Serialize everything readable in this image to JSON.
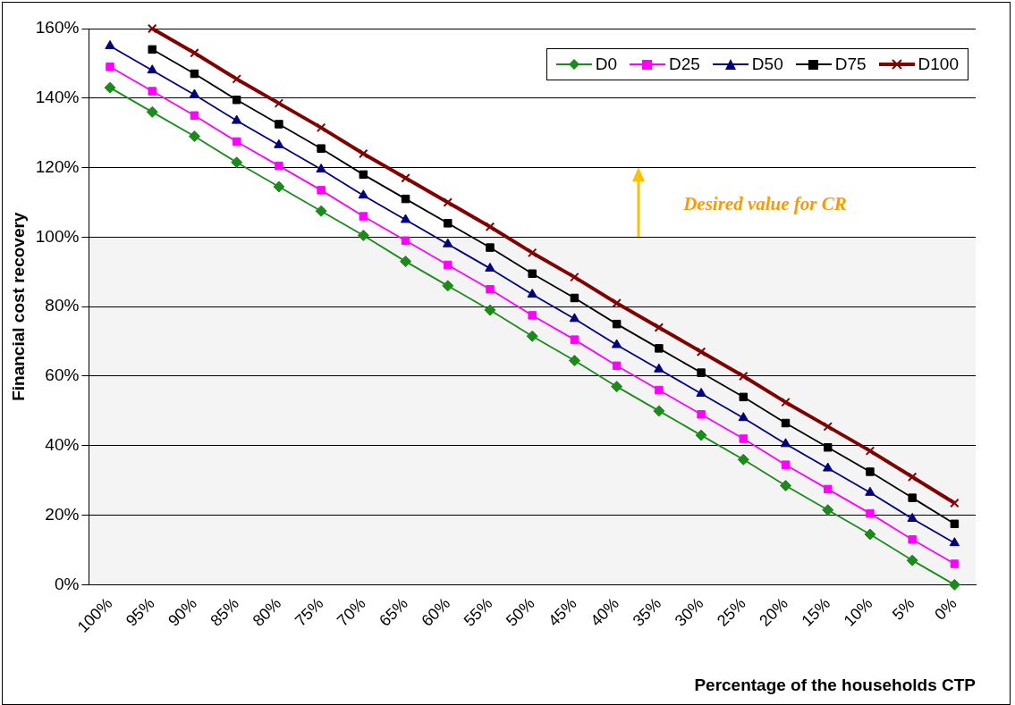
{
  "chart_data": {
    "type": "line",
    "xlabel": "Percentage of the households CTP",
    "ylabel": "Financial cost recovery",
    "categories": [
      "100%",
      "95%",
      "90%",
      "85%",
      "80%",
      "75%",
      "70%",
      "65%",
      "60%",
      "55%",
      "50%",
      "45%",
      "40%",
      "35%",
      "30%",
      "25%",
      "20%",
      "15%",
      "10%",
      "5%",
      "0%"
    ],
    "series": [
      {
        "name": "D0",
        "color": "#1a8c1a",
        "marker": "diamond",
        "values": [
          143,
          136,
          129,
          121.5,
          114.5,
          107.5,
          100.5,
          93,
          86,
          79,
          71.5,
          64.5,
          57,
          50,
          43,
          36,
          28.5,
          21.5,
          14.5,
          7,
          0
        ]
      },
      {
        "name": "D25",
        "color": "#ff00ff",
        "marker": "square",
        "values": [
          149,
          142,
          135,
          127.5,
          120.5,
          113.5,
          106,
          99,
          92,
          85,
          77.5,
          70.5,
          63,
          56,
          49,
          42,
          34.5,
          27.5,
          20.5,
          13,
          6
        ]
      },
      {
        "name": "D50",
        "color": "#000080",
        "marker": "triangle",
        "values": [
          155,
          148,
          141,
          133.5,
          126.5,
          119.5,
          112,
          105,
          98,
          91,
          83.5,
          76.5,
          69,
          62,
          55,
          48,
          40.5,
          33.5,
          26.5,
          19,
          12
        ]
      },
      {
        "name": "D75",
        "color": "#000000",
        "marker": "square",
        "values": [
          null,
          154,
          147,
          139.5,
          132.5,
          125.5,
          118,
          111,
          104,
          97,
          89.5,
          82.5,
          75,
          68,
          61,
          54,
          46.5,
          39.5,
          32.5,
          25,
          17.5
        ]
      },
      {
        "name": "D100",
        "color": "#800000",
        "marker": "cross",
        "values": [
          null,
          160,
          153,
          145.5,
          138.5,
          131.5,
          124,
          117,
          110,
          103,
          95.5,
          88.5,
          81,
          74,
          67,
          60,
          52.5,
          45.5,
          38.5,
          31,
          23.5
        ]
      }
    ],
    "ylim": [
      0,
      160
    ],
    "yticks": [
      {
        "value": 0,
        "label": "0%"
      },
      {
        "value": 20,
        "label": "20%"
      },
      {
        "value": 40,
        "label": "40%"
      },
      {
        "value": 60,
        "label": "60%"
      },
      {
        "value": 80,
        "label": "80%"
      },
      {
        "value": 100,
        "label": "100%"
      },
      {
        "value": 120,
        "label": "120%"
      },
      {
        "value": 140,
        "label": "140%"
      },
      {
        "value": 160,
        "label": "160%"
      }
    ],
    "bands": [
      {
        "axis": "y",
        "from": 0,
        "to": 100,
        "color": "#f4f4f4"
      }
    ],
    "annotations": [
      "Desired value for CR"
    ],
    "grid": "y",
    "legend": "top right"
  }
}
